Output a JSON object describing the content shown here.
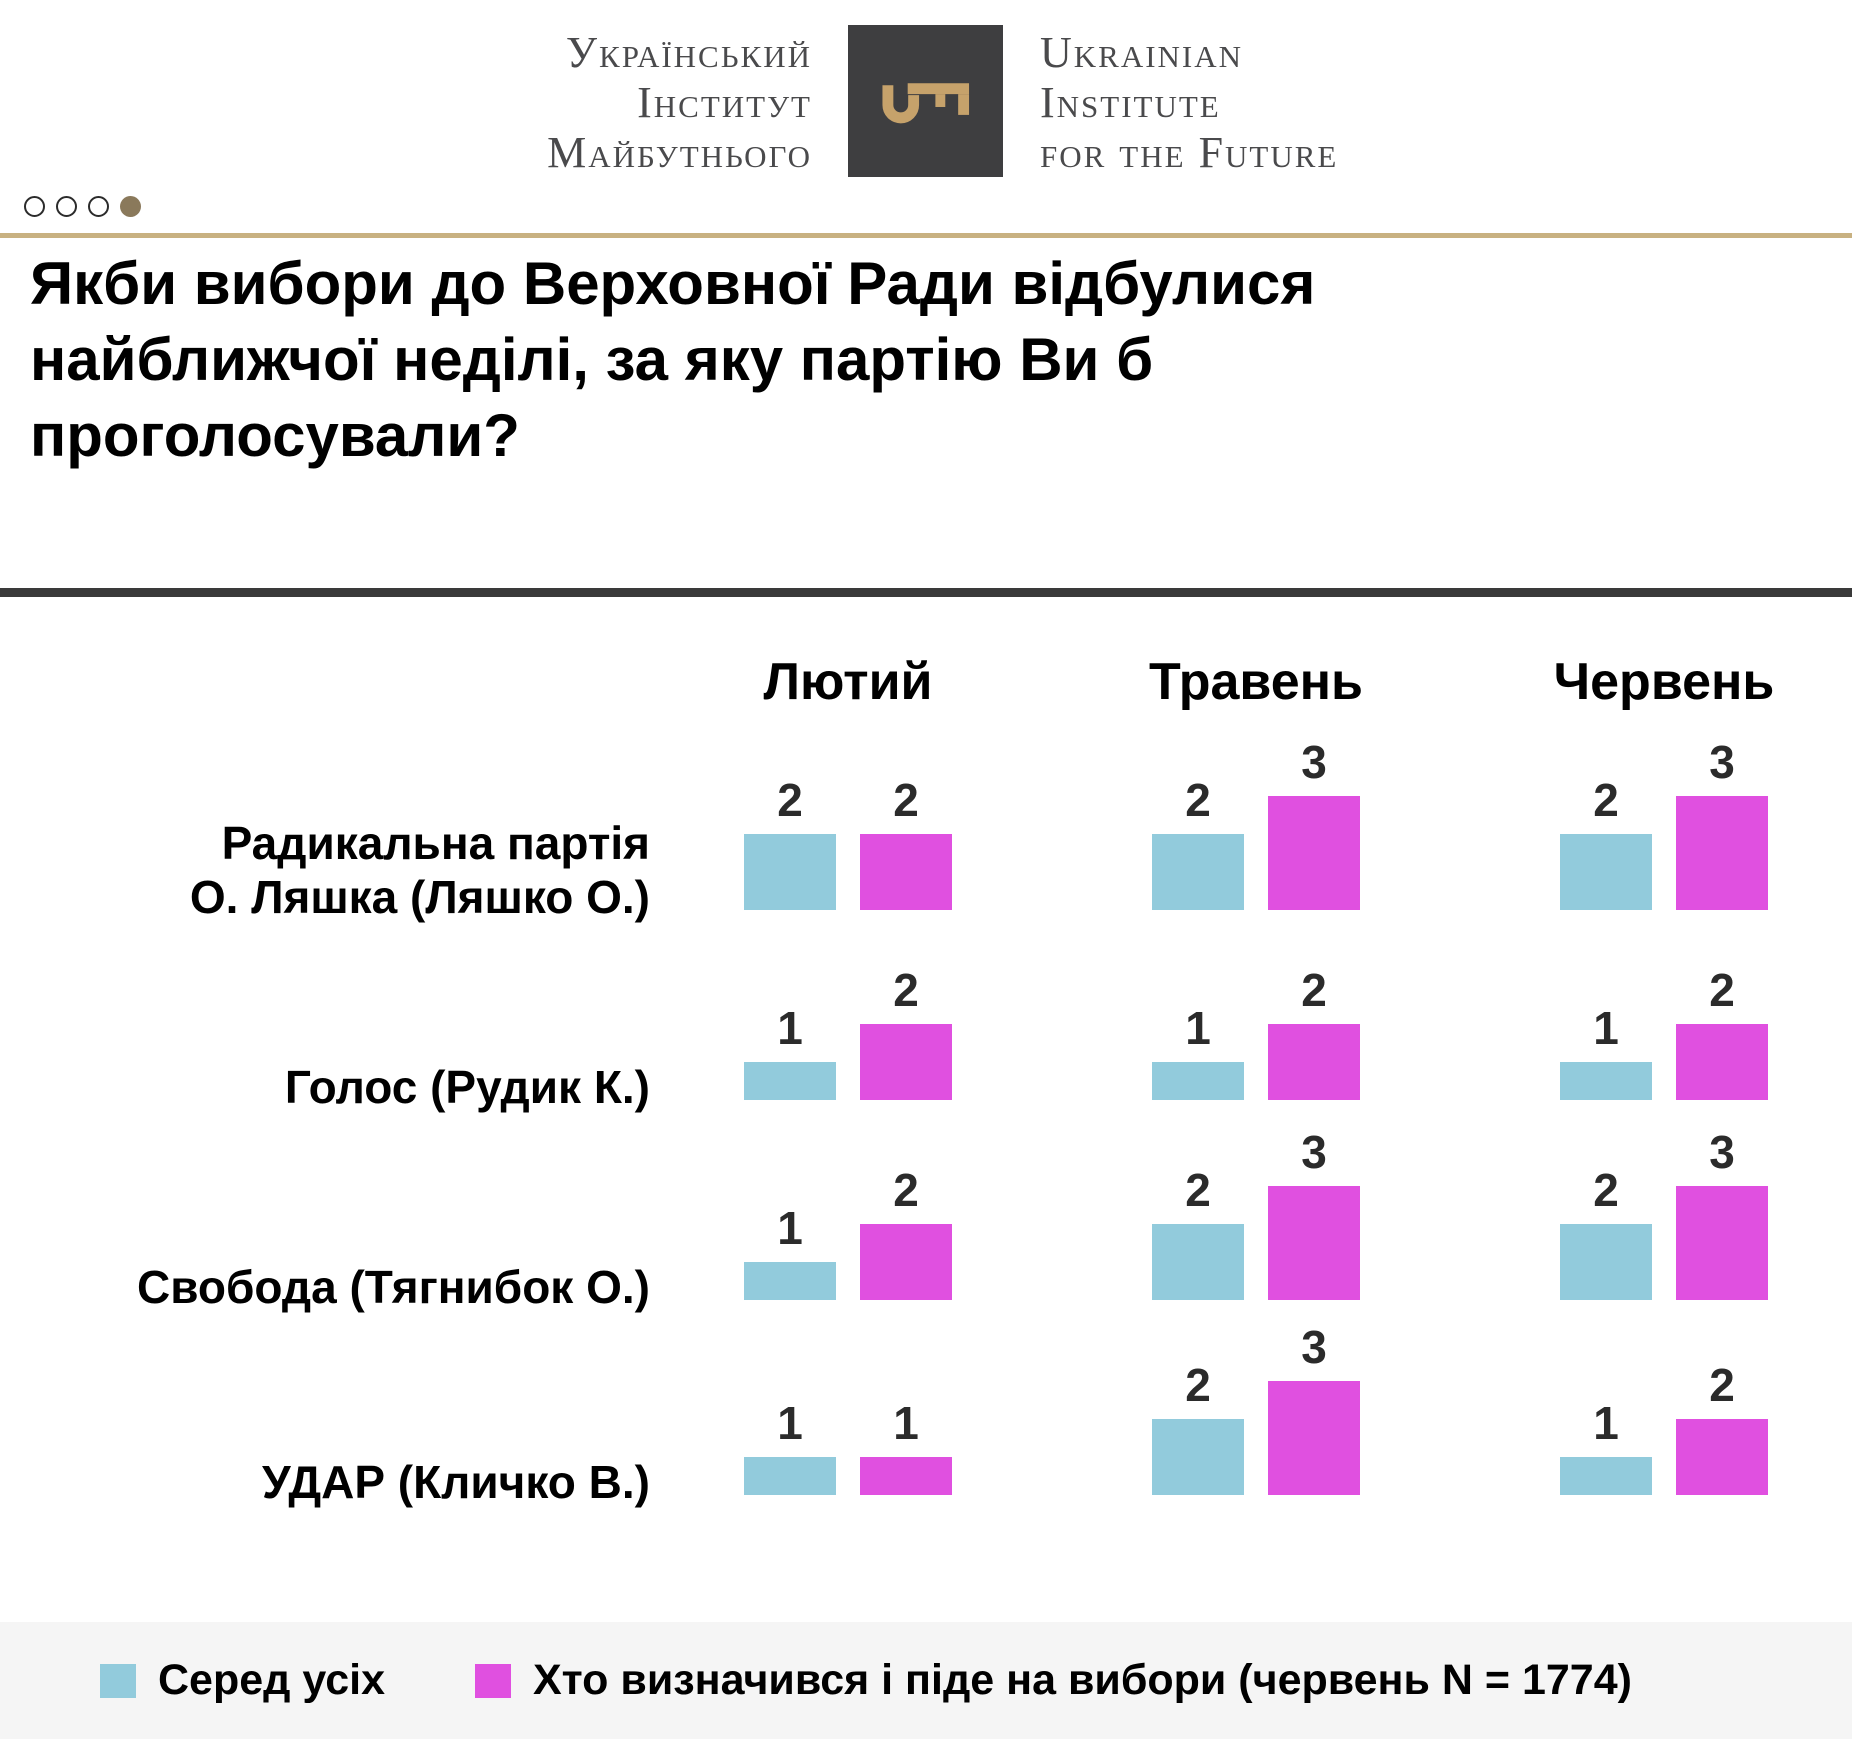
{
  "header": {
    "logo_uk": {
      "lines": [
        "Український",
        "Інститут",
        "Майбутнього"
      ]
    },
    "logo_en": {
      "lines": [
        "Ukrainian",
        "Institute",
        "for the Future"
      ]
    }
  },
  "pagination": {
    "count": 4,
    "active_index": 3
  },
  "title": {
    "lines": [
      "Якби вибори до Верховної Ради відбулися",
      "найближчої неділі, за яку партію Ви б",
      "проголосували?"
    ]
  },
  "chart_data": {
    "type": "bar",
    "title": "Якби вибори до Верховної Ради відбулися найближчої неділі, за яку партію Ви б проголосували?",
    "columns": [
      "Лютий",
      "Травень",
      "Червень"
    ],
    "series": [
      {
        "name": "Серед усіх",
        "color": "#92CBDC"
      },
      {
        "name": "Хто визначився і піде на вибори (червень N = 1774)",
        "color": "#E050E0"
      }
    ],
    "rows": [
      {
        "label": "Радикальна партія О. Ляшка (Ляшко О.)",
        "label_lines": [
          "Радикальна партія",
          "О. Ляшка (Ляшко О.)"
        ],
        "values": [
          [
            2,
            2
          ],
          [
            2,
            3
          ],
          [
            2,
            3
          ]
        ]
      },
      {
        "label": "Голос (Рудик К.)",
        "label_lines": [
          "Голос (Рудик К.)"
        ],
        "values": [
          [
            1,
            2
          ],
          [
            1,
            2
          ],
          [
            1,
            2
          ]
        ]
      },
      {
        "label": "Свобода (Тягнибок О.)",
        "label_lines": [
          "Свобода (Тягнибок О.)"
        ],
        "values": [
          [
            1,
            2
          ],
          [
            2,
            3
          ],
          [
            2,
            3
          ]
        ]
      },
      {
        "label": "УДАР (Кличко В.)",
        "label_lines": [
          "УДАР (Кличко В.)"
        ],
        "values": [
          [
            1,
            1
          ],
          [
            2,
            3
          ],
          [
            1,
            2
          ]
        ]
      }
    ],
    "ylim": [
      0,
      3
    ],
    "grid": false,
    "legend_position": "bottom"
  },
  "colors": {
    "logo_square": "#3E3E40",
    "key_gold": "#C6A26B",
    "logo_text": "#4A4A4C",
    "gold_line": "#C8B181",
    "active_dot": "#8A795B",
    "dot_outline": "#2B2B2B",
    "divider": "#3A3A3A",
    "number_text": "#2B2B2B",
    "legend_bg": "#F5F5F5"
  }
}
